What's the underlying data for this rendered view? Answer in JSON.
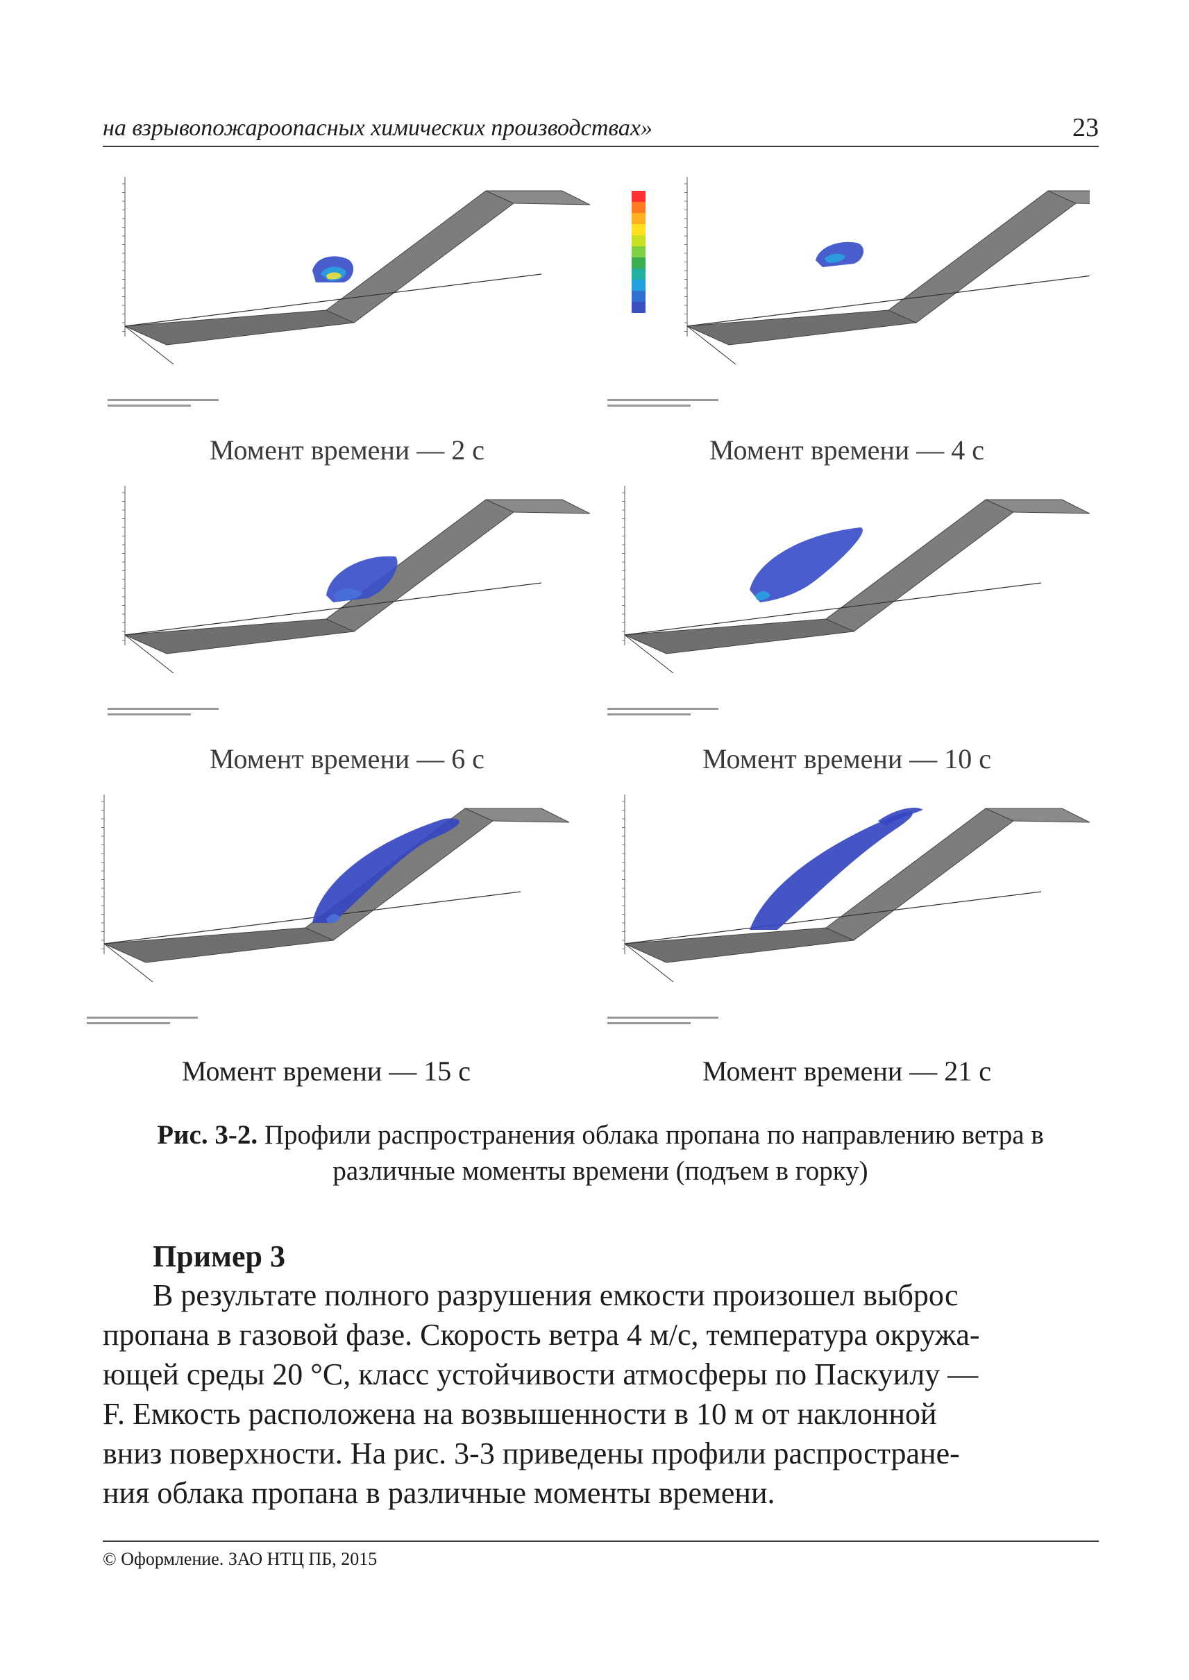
{
  "header": {
    "title": "на взрывопожароопасных химических производствах»",
    "page_number": "23"
  },
  "figures": [
    {
      "caption": "Момент времени — 2 с",
      "cloud": "small-yellow-core",
      "colorbar": false
    },
    {
      "caption": "Момент времени — 4 с",
      "cloud": "small-blue",
      "colorbar": true
    },
    {
      "caption": "Момент времени — 6 с",
      "cloud": "medium-blue",
      "colorbar": false
    },
    {
      "caption": "Момент времени — 10 с",
      "cloud": "large-blue",
      "colorbar": false
    },
    {
      "caption": "Момент времени — 15 с",
      "cloud": "slope-blue",
      "colorbar": false
    },
    {
      "caption": "Момент времени — 21 с",
      "cloud": "full-slope-blue",
      "colorbar": false
    }
  ],
  "colorbar": {
    "colors": [
      "#ff3030",
      "#ff7a20",
      "#ffb020",
      "#ffe020",
      "#c8e020",
      "#7ed040",
      "#38b050",
      "#20b0a0",
      "#20a0e0",
      "#3070d0",
      "#3850c0"
    ]
  },
  "figure_caption": {
    "label": "Рис. 3-2.",
    "text": "Профили распространения облака пропана по направлению ветра в различные моменты времени (подъем в горку)"
  },
  "example": {
    "title": "Пример 3",
    "lines": [
      "В результате полного разрушения емкости произошел выброс",
      "пропана в газовой фазе. Скорость ветра 4 м/с, температура окружа-",
      "ющей среды 20 °С, класс устойчивости атмосферы по Паскуилу —",
      "F. Емкость расположена на возвышенности в 10 м от наклонной",
      "вниз поверхности. На рис. 3-3 приведены профили распростране-",
      "ния облака пропана в различные моменты времени."
    ]
  },
  "footer": "© Оформление. ЗАО НТЦ ПБ, 2015"
}
